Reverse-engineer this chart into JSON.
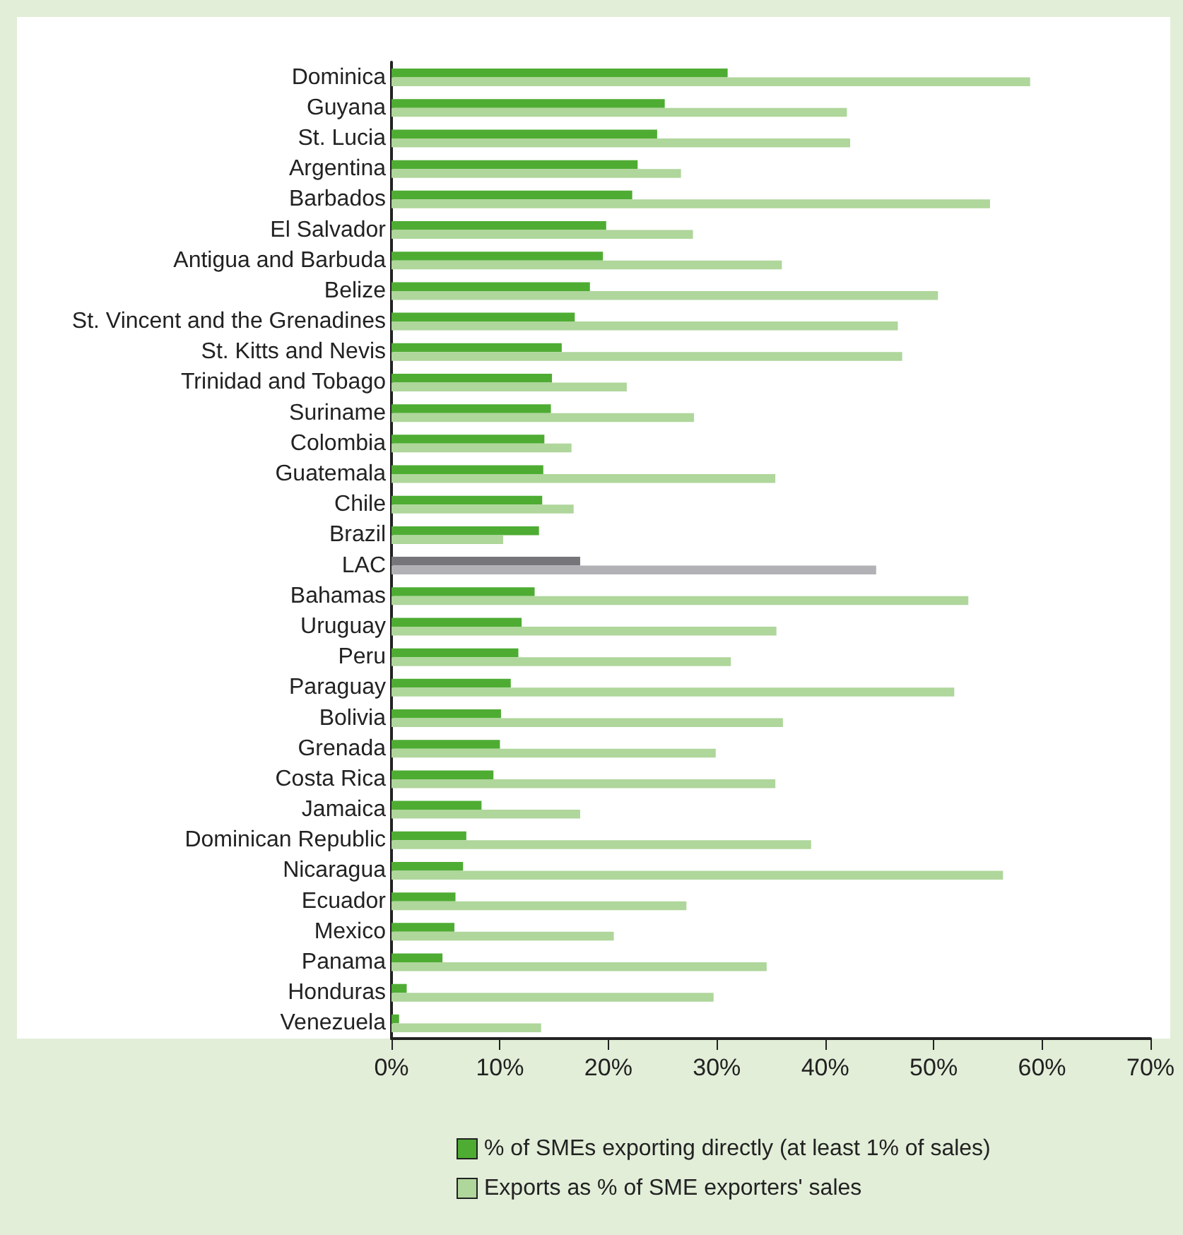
{
  "chart_data": {
    "type": "bar",
    "orientation": "horizontal",
    "categories": [
      "Dominica",
      "Guyana",
      "St. Lucia",
      "Argentina",
      "Barbados",
      "El Salvador",
      "Antigua and Barbuda",
      "Belize",
      "St. Vincent and the Grenadines",
      "St. Kitts and Nevis",
      "Trinidad and Tobago",
      "Suriname",
      "Colombia",
      "Guatemala",
      "Chile",
      "Brazil",
      "LAC",
      "Bahamas",
      "Uruguay",
      "Peru",
      "Paraguay",
      "Bolivia",
      "Grenada",
      "Costa Rica",
      "Jamaica",
      "Dominican Republic",
      "Nicaragua",
      "Ecuador",
      "Mexico",
      "Panama",
      "Honduras",
      "Venezuela"
    ],
    "series": [
      {
        "name": "% of SMEs exporting directly (at least 1% of sales)",
        "color": "#4eac33",
        "colors": [
          "#4eac33",
          "#4eac33",
          "#4eac33",
          "#4eac33",
          "#4eac33",
          "#4eac33",
          "#4eac33",
          "#4eac33",
          "#4eac33",
          "#4eac33",
          "#4eac33",
          "#4eac33",
          "#4eac33",
          "#4eac33",
          "#4eac33",
          "#4eac33",
          "#76767a",
          "#4eac33",
          "#4eac33",
          "#4eac33",
          "#4eac33",
          "#4eac33",
          "#4eac33",
          "#4eac33",
          "#4eac33",
          "#4eac33",
          "#4eac33",
          "#4eac33",
          "#4eac33",
          "#4eac33",
          "#4eac33",
          "#4eac33"
        ],
        "values": [
          31.0,
          25.2,
          24.5,
          22.7,
          22.2,
          19.8,
          19.5,
          18.3,
          16.9,
          15.7,
          14.8,
          14.7,
          14.1,
          14.0,
          13.9,
          13.6,
          17.4,
          13.2,
          12.0,
          11.7,
          11.0,
          10.1,
          10.0,
          9.4,
          8.3,
          6.9,
          6.6,
          5.9,
          5.8,
          4.7,
          1.4,
          0.7
        ]
      },
      {
        "name": "Exports as % of SME exporters' sales",
        "color": "#afd69b",
        "colors": [
          "#afd69b",
          "#afd69b",
          "#afd69b",
          "#afd69b",
          "#afd69b",
          "#afd69b",
          "#afd69b",
          "#afd69b",
          "#afd69b",
          "#afd69b",
          "#afd69b",
          "#afd69b",
          "#afd69b",
          "#afd69b",
          "#afd69b",
          "#afd69b",
          "#b2b2b6",
          "#afd69b",
          "#afd69b",
          "#afd69b",
          "#afd69b",
          "#afd69b",
          "#afd69b",
          "#afd69b",
          "#afd69b",
          "#afd69b",
          "#afd69b",
          "#afd69b",
          "#afd69b",
          "#afd69b",
          "#afd69b",
          "#afd69b"
        ],
        "values": [
          58.9,
          42.0,
          42.3,
          26.7,
          55.2,
          27.8,
          36.0,
          50.4,
          46.7,
          47.1,
          21.7,
          27.9,
          16.6,
          35.4,
          16.8,
          10.3,
          44.7,
          53.2,
          35.5,
          31.3,
          51.9,
          36.1,
          29.9,
          35.4,
          17.4,
          38.7,
          56.4,
          27.2,
          20.5,
          34.6,
          29.7,
          13.8
        ]
      }
    ],
    "xlim": [
      0,
      70
    ],
    "xticks": [
      {
        "value": 0,
        "label": "0%"
      },
      {
        "value": 10,
        "label": "10%"
      },
      {
        "value": 20,
        "label": "20%"
      },
      {
        "value": 30,
        "label": "30%"
      },
      {
        "value": 40,
        "label": "40%"
      },
      {
        "value": 50,
        "label": "50%"
      },
      {
        "value": 60,
        "label": "60%"
      },
      {
        "value": 70,
        "label": "70%"
      }
    ],
    "grid": false,
    "legend": "bottom"
  }
}
